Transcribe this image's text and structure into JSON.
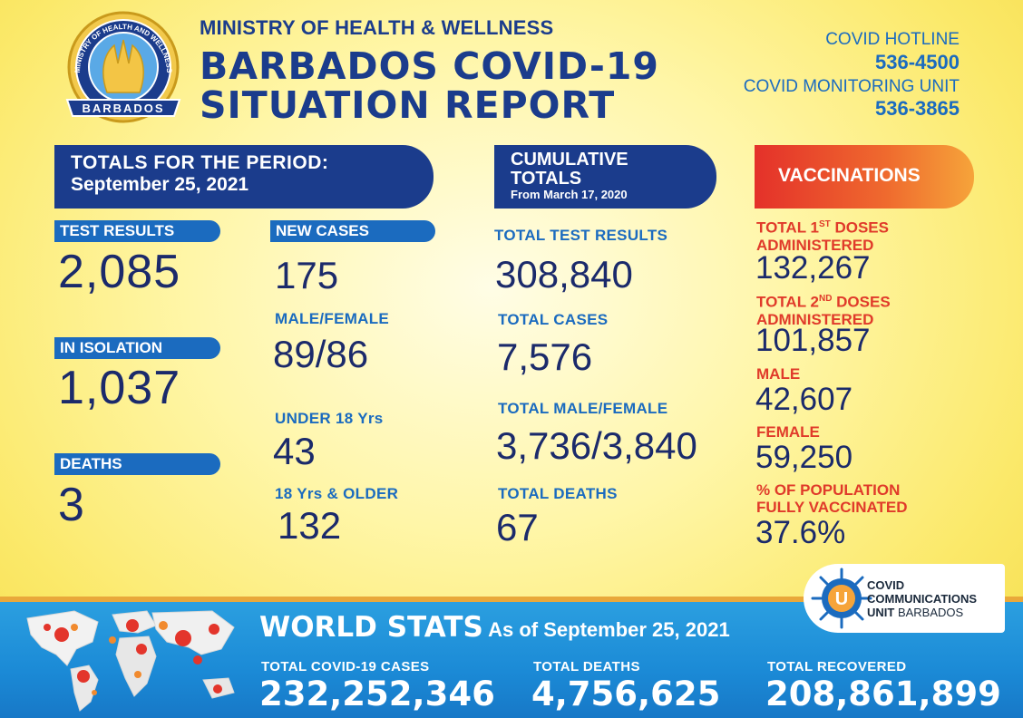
{
  "header": {
    "ministry": "MINISTRY OF HEALTH & WELLNESS",
    "title_line1": "BARBADOS COVID-19",
    "title_line2": "SITUATION REPORT",
    "hotline_label": "COVID HOTLINE",
    "hotline_number": "536-4500",
    "monitoring_label": "COVID MONITORING UNIT",
    "monitoring_number": "536-3865",
    "seal_top_text": "MINISTRY OF HEALTH AND WELLNESS",
    "seal_bottom_text": "BARBADOS"
  },
  "period": {
    "banner_line1": "TOTALS FOR THE PERIOD:",
    "banner_line2": "September 25, 2021",
    "test_results_label": "TEST RESULTS",
    "test_results_value": "2,085",
    "isolation_label": "IN ISOLATION",
    "isolation_value": "1,037",
    "deaths_label": "DEATHS",
    "deaths_value": "3",
    "new_cases_label": "NEW CASES",
    "new_cases_value": "175",
    "male_female_label": "MALE/FEMALE",
    "male_female_value": "89/86",
    "under18_label": "UNDER 18 Yrs",
    "under18_value": "43",
    "over18_label": "18 Yrs & OLDER",
    "over18_value": "132"
  },
  "cumulative": {
    "banner_line1": "CUMULATIVE",
    "banner_line2": "TOTALS",
    "banner_line3": "From March 17, 2020",
    "test_results_label": "TOTAL TEST RESULTS",
    "test_results_value": "308,840",
    "cases_label": "TOTAL CASES",
    "cases_value": "7,576",
    "male_female_label": "TOTAL MALE/FEMALE",
    "male_female_value": "3,736/3,840",
    "deaths_label": "TOTAL DEATHS",
    "deaths_value": "67"
  },
  "vaccinations": {
    "banner": "VACCINATIONS",
    "first_doses_pre": "TOTAL 1",
    "first_doses_sup": "ST",
    "first_doses_post": " DOSES",
    "first_doses_line2": "ADMINISTERED",
    "first_doses_value": "132,267",
    "second_doses_pre": "TOTAL 2",
    "second_doses_sup": "ND",
    "second_doses_post": " DOSES",
    "second_doses_line2": "ADMINISTERED",
    "second_doses_value": "101,857",
    "male_label": "MALE",
    "male_value": "42,607",
    "female_label": "FEMALE",
    "female_value": "59,250",
    "pct_label_line1": "% OF POPULATION",
    "pct_label_line2": "FULLY VACCINATED",
    "pct_value": "37.6%"
  },
  "ccu": {
    "line1": "COVID",
    "line2": "COMMUNICATIONS",
    "line3_bold": "UNIT",
    "line3_rest": " BARBADOS",
    "icon_letter": "U"
  },
  "world": {
    "title": "WORLD STATS",
    "subtitle": " As of September 25, 2021",
    "cases_label": "TOTAL COVID-19 CASES",
    "cases_value": "232,252,346",
    "deaths_label": "TOTAL DEATHS",
    "deaths_value": "4,756,625",
    "recovered_label": "TOTAL RECOVERED",
    "recovered_value": "208,861,899"
  },
  "colors": {
    "navy": "#1b3c8c",
    "blue": "#1b6bbf",
    "red": "#e03a2a",
    "world_bar": "#1b8ad6"
  }
}
